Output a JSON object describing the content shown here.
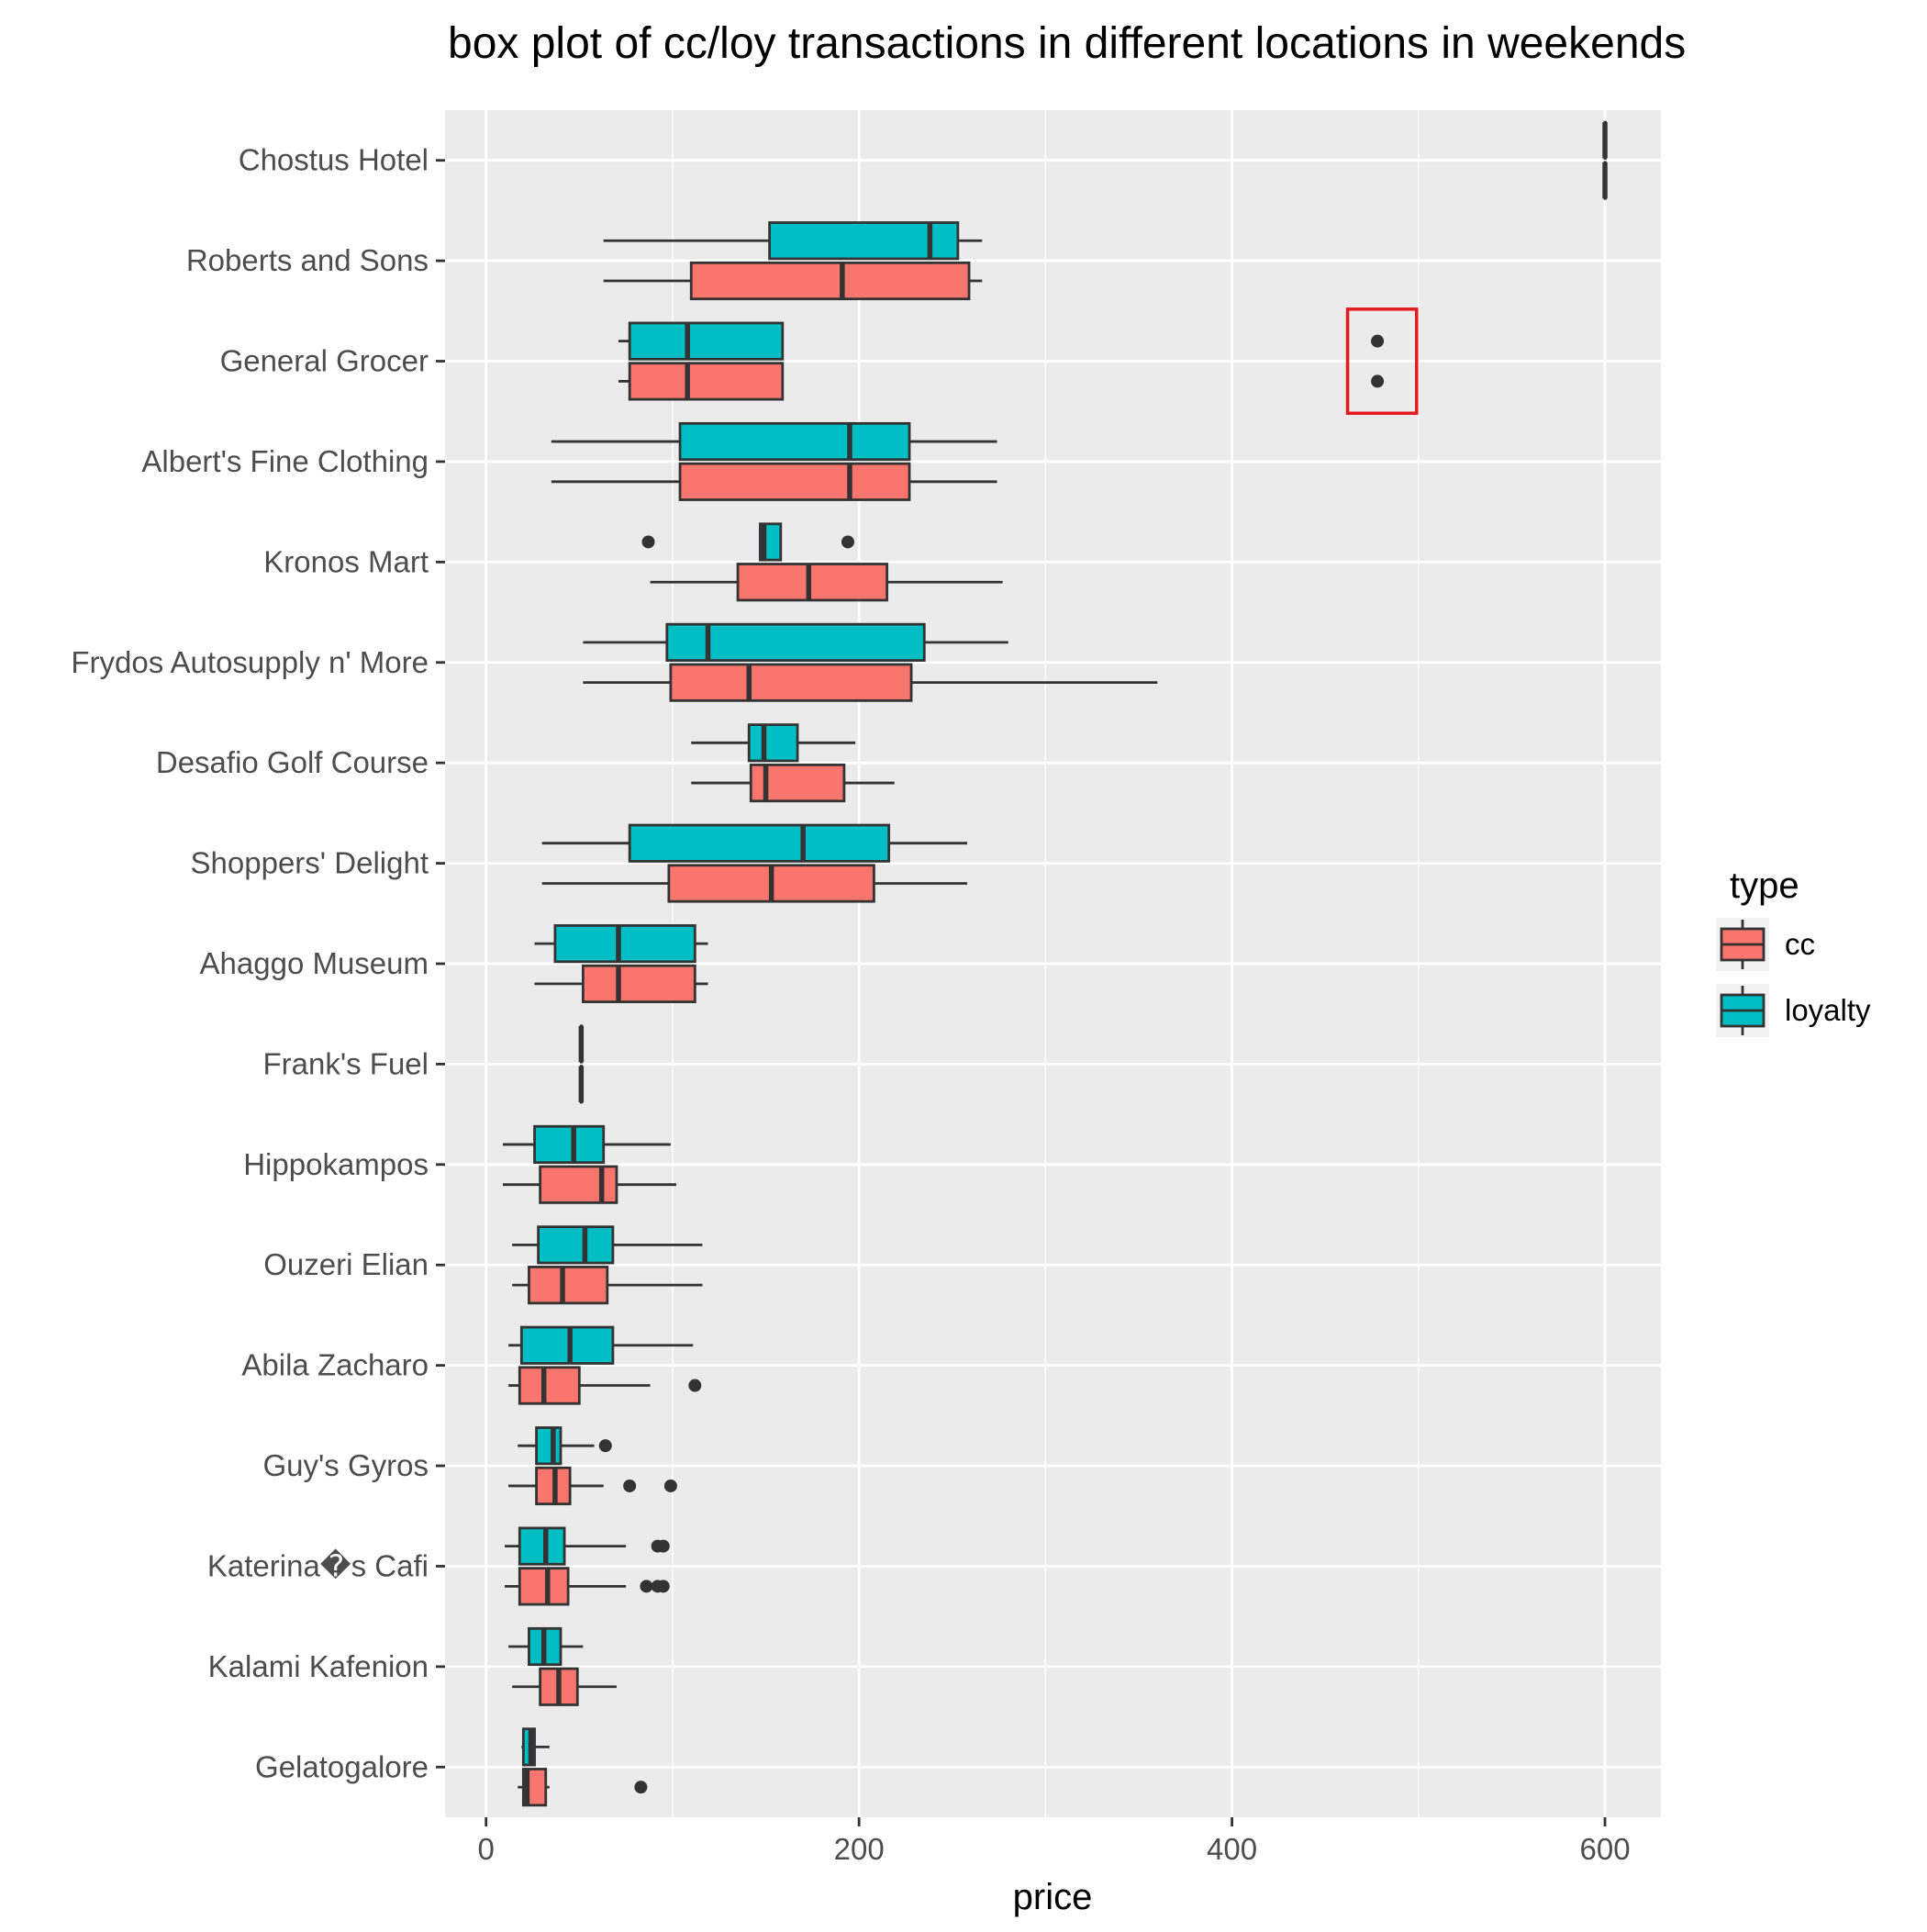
{
  "chart_data": {
    "type": "boxplot",
    "title": "box plot of cc/loy transactions in different locations in weekends",
    "xlabel": "price",
    "ylabel": "",
    "xlim": [
      -22,
      630
    ],
    "x_ticks": [
      0,
      200,
      400,
      600
    ],
    "x_tick_labels": [
      "0",
      "200",
      "400",
      "600"
    ],
    "grid": true,
    "orientation": "horizontal",
    "categories": [
      "Chostus Hotel",
      "Roberts and Sons",
      "General Grocer",
      "Albert's Fine Clothing",
      "Kronos Mart",
      "Frydos Autosupply n' More",
      "Desafio Golf Course",
      "Shoppers' Delight",
      "Ahaggo Museum",
      "Frank's Fuel",
      "Hippokampos",
      "Ouzeri Elian",
      "Abila Zacharo",
      "Guy's Gyros",
      "Katerina�s Cafi",
      "Kalami Kafenion",
      "Gelatogalore"
    ],
    "legend": {
      "title": "type",
      "position": "right"
    },
    "series": [
      {
        "name": "cc",
        "color": "#F8766D",
        "boxes": [
          {
            "category": "Chostus Hotel",
            "min": 600,
            "q1": 600,
            "median": 600,
            "q3": 600,
            "max": 600,
            "outliers": []
          },
          {
            "category": "Roberts and Sons",
            "min": 63,
            "q1": 110,
            "median": 191,
            "q3": 259,
            "max": 266,
            "outliers": []
          },
          {
            "category": "General Grocer",
            "min": 71,
            "q1": 77,
            "median": 108,
            "q3": 159,
            "max": 159,
            "outliers": [
              478
            ]
          },
          {
            "category": "Albert's Fine Clothing",
            "min": 35,
            "q1": 104,
            "median": 195,
            "q3": 227,
            "max": 274,
            "outliers": []
          },
          {
            "category": "Kronos Mart",
            "min": 88,
            "q1": 135,
            "median": 173,
            "q3": 215,
            "max": 277,
            "outliers": []
          },
          {
            "category": "Frydos Autosupply n' More",
            "min": 52,
            "q1": 99,
            "median": 141,
            "q3": 228,
            "max": 360,
            "outliers": []
          },
          {
            "category": "Desafio Golf Course",
            "min": 110,
            "q1": 142,
            "median": 150,
            "q3": 192,
            "max": 219,
            "outliers": []
          },
          {
            "category": "Shoppers' Delight",
            "min": 30,
            "q1": 98,
            "median": 153,
            "q3": 208,
            "max": 258,
            "outliers": []
          },
          {
            "category": "Ahaggo Museum",
            "min": 26,
            "q1": 52,
            "median": 71,
            "q3": 112,
            "max": 119,
            "outliers": []
          },
          {
            "category": "Frank's Fuel",
            "min": 51,
            "q1": 51,
            "median": 51,
            "q3": 51,
            "max": 51,
            "outliers": []
          },
          {
            "category": "Hippokampos",
            "min": 9,
            "q1": 29,
            "median": 62,
            "q3": 70,
            "max": 102,
            "outliers": []
          },
          {
            "category": "Ouzeri Elian",
            "min": 14,
            "q1": 23,
            "median": 41,
            "q3": 65,
            "max": 116,
            "outliers": []
          },
          {
            "category": "Abila Zacharo",
            "min": 12,
            "q1": 18,
            "median": 31,
            "q3": 50,
            "max": 88,
            "outliers": [
              112
            ]
          },
          {
            "category": "Guy's Gyros",
            "min": 12,
            "q1": 27,
            "median": 37,
            "q3": 45,
            "max": 63,
            "outliers": [
              77,
              99
            ]
          },
          {
            "category": "Katerina�s Cafi",
            "min": 10,
            "q1": 18,
            "median": 33,
            "q3": 44,
            "max": 75,
            "outliers": [
              86,
              92,
              95
            ]
          },
          {
            "category": "Kalami Kafenion",
            "min": 14,
            "q1": 29,
            "median": 39,
            "q3": 49,
            "max": 70,
            "outliers": []
          },
          {
            "category": "Gelatogalore",
            "min": 17,
            "q1": 20,
            "median": 22,
            "q3": 32,
            "max": 34,
            "outliers": [
              83
            ]
          }
        ]
      },
      {
        "name": "loyalty",
        "color": "#00BFC4",
        "boxes": [
          {
            "category": "Chostus Hotel",
            "min": 600,
            "q1": 600,
            "median": 600,
            "q3": 600,
            "max": 600,
            "outliers": []
          },
          {
            "category": "Roberts and Sons",
            "min": 63,
            "q1": 152,
            "median": 238,
            "q3": 253,
            "max": 266,
            "outliers": []
          },
          {
            "category": "General Grocer",
            "min": 71,
            "q1": 77,
            "median": 108,
            "q3": 159,
            "max": 159,
            "outliers": [
              478
            ]
          },
          {
            "category": "Albert's Fine Clothing",
            "min": 35,
            "q1": 104,
            "median": 195,
            "q3": 227,
            "max": 274,
            "outliers": []
          },
          {
            "category": "Kronos Mart",
            "min": 147,
            "q1": 147,
            "median": 149,
            "q3": 158,
            "max": 158,
            "outliers": [
              87,
              194
            ]
          },
          {
            "category": "Frydos Autosupply n' More",
            "min": 52,
            "q1": 97,
            "median": 119,
            "q3": 235,
            "max": 280,
            "outliers": []
          },
          {
            "category": "Desafio Golf Course",
            "min": 110,
            "q1": 141,
            "median": 149,
            "q3": 167,
            "max": 198,
            "outliers": []
          },
          {
            "category": "Shoppers' Delight",
            "min": 30,
            "q1": 77,
            "median": 170,
            "q3": 216,
            "max": 258,
            "outliers": []
          },
          {
            "category": "Ahaggo Museum",
            "min": 26,
            "q1": 37,
            "median": 71,
            "q3": 112,
            "max": 119,
            "outliers": []
          },
          {
            "category": "Frank's Fuel",
            "min": 51,
            "q1": 51,
            "median": 51,
            "q3": 51,
            "max": 51,
            "outliers": []
          },
          {
            "category": "Hippokampos",
            "min": 9,
            "q1": 26,
            "median": 47,
            "q3": 63,
            "max": 99,
            "outliers": []
          },
          {
            "category": "Ouzeri Elian",
            "min": 14,
            "q1": 28,
            "median": 53,
            "q3": 68,
            "max": 116,
            "outliers": []
          },
          {
            "category": "Abila Zacharo",
            "min": 12,
            "q1": 19,
            "median": 45,
            "q3": 68,
            "max": 111,
            "outliers": []
          },
          {
            "category": "Guy's Gyros",
            "min": 17,
            "q1": 27,
            "median": 36,
            "q3": 40,
            "max": 58,
            "outliers": [
              64
            ]
          },
          {
            "category": "Katerina�s Cafi",
            "min": 10,
            "q1": 18,
            "median": 32,
            "q3": 42,
            "max": 75,
            "outliers": [
              92,
              95
            ]
          },
          {
            "category": "Kalami Kafenion",
            "min": 12,
            "q1": 23,
            "median": 31,
            "q3": 40,
            "max": 52,
            "outliers": []
          },
          {
            "category": "Gelatogalore",
            "min": 19,
            "q1": 20,
            "median": 24,
            "q3": 26,
            "max": 34,
            "outliers": []
          }
        ]
      }
    ],
    "annotations": [
      {
        "type": "highlight-rectangle",
        "color": "#E41A1C",
        "x_range": [
          462,
          499
        ],
        "category": "General Grocer"
      }
    ]
  }
}
